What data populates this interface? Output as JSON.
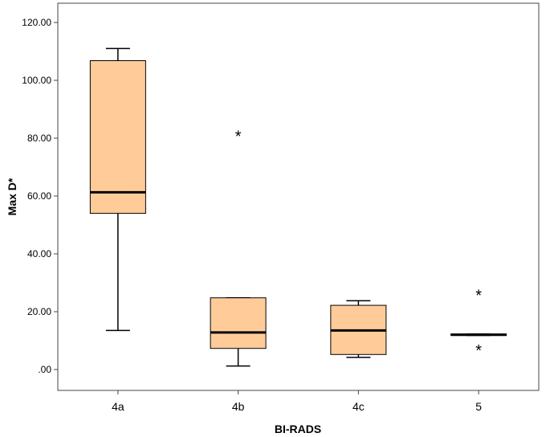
{
  "chart_data": {
    "type": "boxplot",
    "title": "",
    "xlabel": "BI-RADS",
    "ylabel": "Max D*",
    "ylim": [
      -7,
      122
    ],
    "yticks": [
      0,
      20,
      40,
      60,
      80,
      100,
      120
    ],
    "ytick_labels": [
      ".00",
      "20.00",
      "40.00",
      "60.00",
      "80.00",
      "100.00",
      "120.00"
    ],
    "grid": false,
    "legend": "none",
    "box_color": "#FFCC99",
    "categories": [
      "4a",
      "4b",
      "4c",
      "5"
    ],
    "boxes": [
      {
        "category": "4a",
        "whisker_low": 13.5,
        "q1": 54.0,
        "median": 61.3,
        "q3": 106.8,
        "whisker_high": 111.0,
        "outliers": []
      },
      {
        "category": "4b",
        "whisker_low": 1.2,
        "q1": 7.3,
        "median": 12.8,
        "q3": 24.8,
        "whisker_high": 24.8,
        "outliers": [
          81.3
        ]
      },
      {
        "category": "4c",
        "whisker_low": 4.2,
        "q1": 5.2,
        "median": 13.5,
        "q3": 22.2,
        "whisker_high": 23.8,
        "outliers": []
      },
      {
        "category": "5",
        "whisker_low": 11.8,
        "q1": 11.8,
        "median": 12.0,
        "q3": 12.3,
        "whisker_high": 12.3,
        "outliers": [
          26.2,
          7.2
        ]
      }
    ]
  }
}
